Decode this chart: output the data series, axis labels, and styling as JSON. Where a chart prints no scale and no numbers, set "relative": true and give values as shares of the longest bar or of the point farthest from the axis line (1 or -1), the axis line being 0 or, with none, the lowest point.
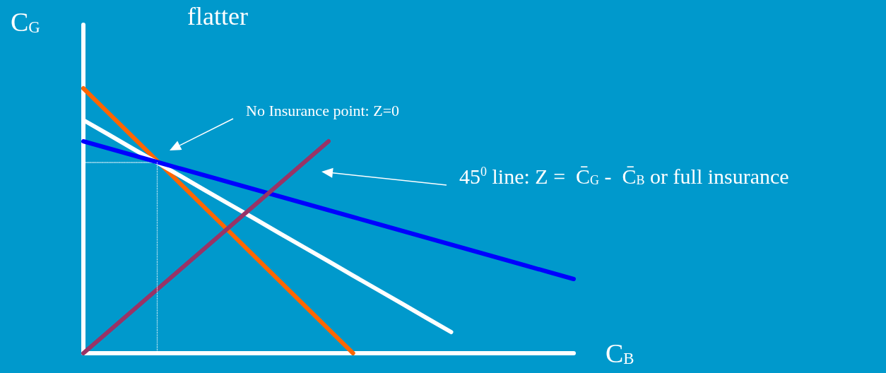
{
  "chart_data": {
    "type": "line",
    "title": "flatter",
    "xlabel": "C$_{B}$",
    "ylabel": "C$_{G}$",
    "relative": true,
    "grid": false,
    "marker": "none",
    "categories": [
      null,
      null,
      null,
      null,
      null,
      null,
      null,
      null,
      null,
      null,
      null,
      null,
      null,
      null,
      null,
      null,
      null,
      null,
      null,
      null,
      null
    ],
    "annotations": [
      "No Insurance point: Z=0",
      "45$^{0}$ line: Z =  C̄$_{G}$ -  C̄$_{B}$ or full insurance"
    ],
    "series": [
      {
        "color": "#ff6600",
        "values": [
          1,
          0.909,
          0.818,
          0.727,
          0.636,
          0.545,
          0.455,
          0.364,
          0.273,
          0.182,
          0.091,
          0,
          null,
          null,
          null,
          null,
          null,
          null,
          null,
          null,
          null
        ]
      },
      {
        "color": "#ffffff",
        "values": [
          0.88,
          0.827,
          0.773,
          0.72,
          0.667,
          0.613,
          0.56,
          0.507,
          0.453,
          0.4,
          0.347,
          0.293,
          0.24,
          0.187,
          0.133,
          0.08,
          null,
          null,
          null,
          null,
          null
        ]
      },
      {
        "color": "#0000ff",
        "values": [
          0.8,
          0.774,
          0.748,
          0.722,
          0.696,
          0.67,
          0.644,
          0.618,
          0.592,
          0.566,
          0.54,
          0.514,
          0.488,
          0.462,
          0.436,
          0.41,
          0.384,
          0.358,
          0.332,
          0.306,
          0.28
        ]
      },
      {
        "color": "#993366",
        "values": [
          0,
          0.08,
          0.16,
          0.24,
          0.32,
          0.4,
          0.48,
          0.56,
          0.64,
          0.72,
          0.8,
          null,
          null,
          null,
          null,
          null,
          null,
          null,
          null,
          null,
          null
        ]
      },
      {
        "color": "#ffffff",
        "line_style": "dotted",
        "values": [
          0.72,
          0.72,
          0.72,
          0.72,
          null,
          null,
          null,
          null,
          null,
          null,
          null,
          null,
          null,
          null,
          null,
          null,
          null,
          null,
          null,
          null,
          null
        ]
      }
    ]
  }
}
